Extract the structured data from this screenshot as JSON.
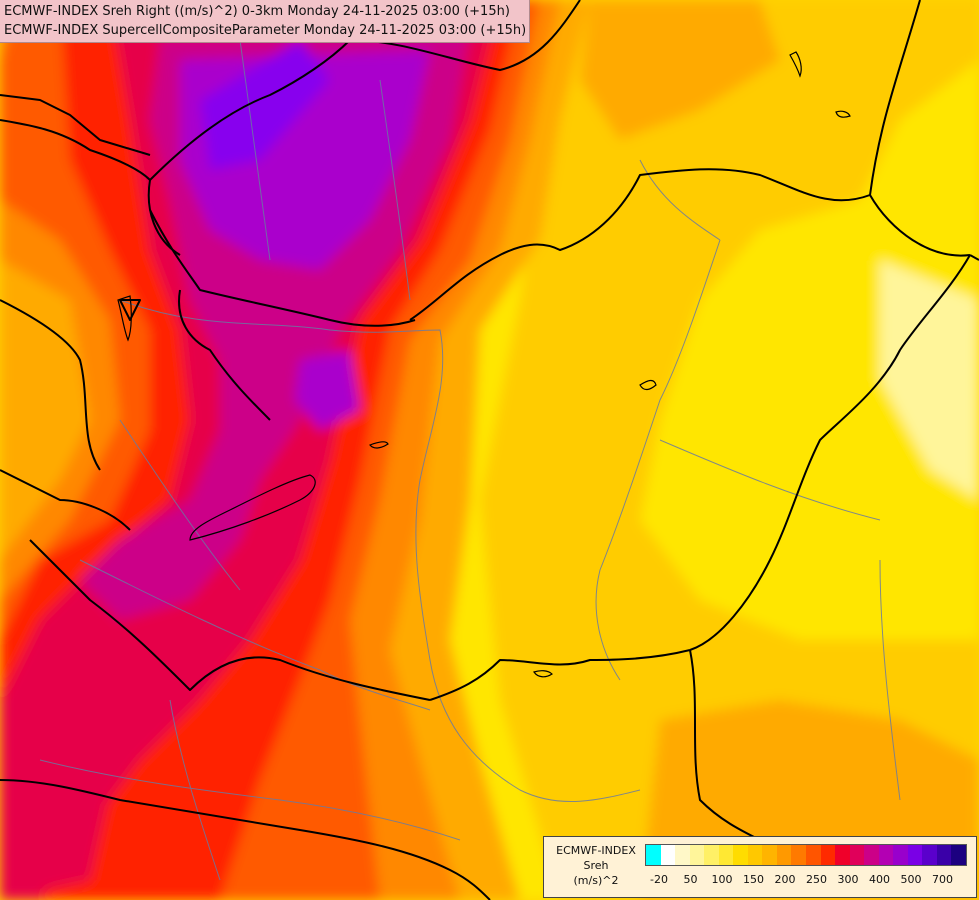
{
  "titles": {
    "line1": "ECMWF-INDEX Sreh Right ((m/s)^2) 0-3km Monday 24-11-2025 03:00 (+15h)",
    "line2": "ECMWF-INDEX SupercellCompositeParameter Monday 24-11-2025 03:00 (+15h)"
  },
  "legend": {
    "source": "ECMWF-INDEX",
    "variable": "Sreh",
    "unit": "(m/s)^2",
    "swatch_colors": [
      "#00ffff",
      "#ffffff",
      "#fff8c8",
      "#fff59a",
      "#fff066",
      "#ffe833",
      "#ffdc00",
      "#ffc800",
      "#ffb400",
      "#ff9900",
      "#ff7a00",
      "#ff5500",
      "#ff2a00",
      "#f0002a",
      "#e0005a",
      "#cc0088",
      "#b300b3",
      "#9900cc",
      "#7a00e6",
      "#5a00cc",
      "#3a00a8",
      "#1c0080"
    ],
    "tick_labels": [
      "-20",
      "50",
      "100",
      "150",
      "200",
      "250",
      "300",
      "400",
      "500",
      "700"
    ]
  },
  "map": {
    "field_colors": {
      "yellow_light": "#fff59a",
      "yellow": "#ffe600",
      "gold": "#ffcc00",
      "orange_light": "#ffaa00",
      "orange": "#ff8800",
      "orange_red": "#ff5a00",
      "red": "#ff2200",
      "crimson": "#e6004a",
      "magenta": "#cc0088",
      "purple": "#aa00cc",
      "violet": "#8800ee"
    },
    "border_color": "#000000",
    "river_color": "#6a7aa0"
  }
}
